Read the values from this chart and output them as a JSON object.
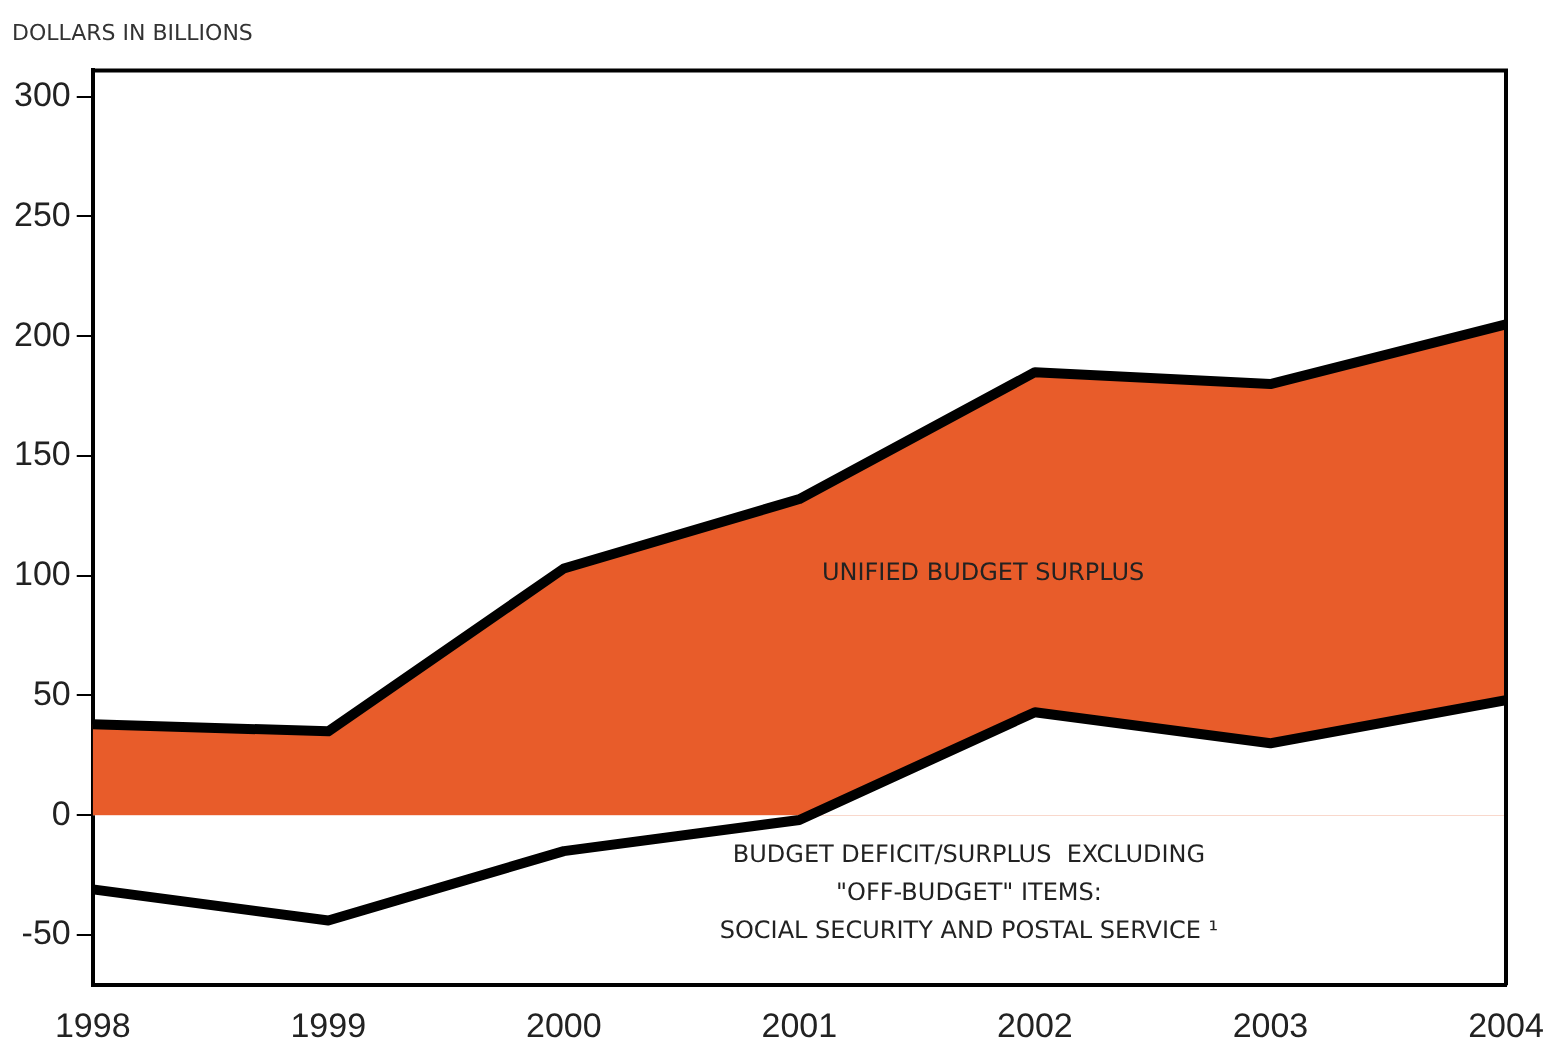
{
  "chart_data": {
    "type": "area",
    "ylabel": "DOLLARS IN BILLIONS",
    "x": [
      1998,
      1999,
      2000,
      2001,
      2002,
      2003,
      2004
    ],
    "series": [
      {
        "type": "area",
        "color": "#e85c2a",
        "values": [
          38,
          35,
          103,
          132,
          185,
          180,
          205
        ]
      },
      {
        "type": "line",
        "color": "#000000",
        "values": [
          -31,
          -44,
          -15,
          -2,
          43,
          30,
          48
        ]
      }
    ],
    "xlim": [
      1998,
      2004
    ],
    "xticks": [
      1998,
      1999,
      2000,
      2001,
      2002,
      2003,
      2004
    ],
    "ylim": [
      -71,
      311
    ],
    "yticks": [
      -50,
      0,
      50,
      100,
      150,
      200,
      250,
      300
    ],
    "grid": false,
    "legend": false,
    "annotations": [
      "UNIFIED BUDGET SURPLUS",
      "BUDGET DEFICIT/SURPLUS  EXCLUDING\n\"OFF-BUDGET\" ITEMS:\nSOCIAL SECURITY AND POSTAL SERVICE ¹"
    ]
  }
}
